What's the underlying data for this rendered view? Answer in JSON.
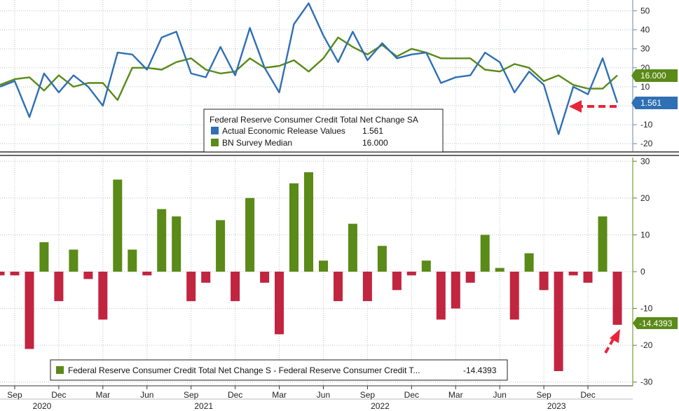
{
  "chart_data": [
    {
      "type": "line",
      "title": "Federal Reserve Consumer Credit Total Net Change SA",
      "ylim": [
        -24,
        55
      ],
      "yticks": [
        -20,
        -10,
        0,
        10,
        20,
        30,
        40,
        50
      ],
      "ytick_labels": [
        "-20",
        "-10",
        "0",
        "10",
        "20",
        "30",
        "40",
        "50"
      ],
      "series": [
        {
          "name": "Actual Economic Release Values",
          "legend_value": "1.561",
          "color": "#2f6fb3",
          "values": [
            10,
            13,
            -6,
            17,
            7,
            16,
            10,
            0,
            28,
            27,
            19,
            36,
            39,
            17,
            15,
            31,
            16,
            41,
            20,
            7,
            43,
            54,
            37,
            23,
            39,
            24,
            33,
            25,
            27,
            28,
            12,
            15,
            16,
            28,
            23,
            7,
            18,
            11,
            -15,
            10,
            6,
            25,
            1.561
          ]
        },
        {
          "name": "BN Survey Median",
          "legend_value": "16.000",
          "color": "#5a8a17",
          "values": [
            11,
            14,
            15,
            8,
            16,
            10,
            12,
            12,
            3,
            20,
            20,
            19,
            23,
            25,
            19,
            17,
            18,
            25,
            20,
            21,
            24,
            18,
            25,
            36,
            31,
            27,
            32,
            26,
            30,
            28,
            25,
            25,
            25,
            19,
            18,
            22,
            20,
            13,
            16,
            11,
            9,
            9,
            16
          ]
        }
      ],
      "last_value_badges": [
        {
          "series": "BN Survey Median",
          "label": "16.000",
          "color": "#5a8a17"
        },
        {
          "series": "Actual Economic Release Values",
          "label": "1.561",
          "color": "#2f6fb3"
        }
      ]
    },
    {
      "type": "bar",
      "title": "Federal Reserve Consumer Credit Total Net Change S - Federal Reserve Consumer Credit T...",
      "ylim": [
        -31,
        31
      ],
      "yticks": [
        -30,
        -20,
        -10,
        0,
        10,
        20,
        30
      ],
      "ytick_labels": [
        "-30",
        "-20",
        "-10",
        "0",
        "10",
        "20",
        "30"
      ],
      "positive_color": "#5a8a17",
      "negative_color": "#c1253f",
      "series": [
        {
          "name": "Federal Reserve Consumer Credit Total Net Change S - Federal Reserve Consumer Credit T...",
          "legend_value": "-14.4393",
          "values": [
            -1,
            -1,
            -21,
            8,
            -8,
            6,
            -2,
            -13,
            25,
            6,
            -1,
            17,
            15,
            -8,
            -3,
            14,
            -8,
            20,
            -3,
            -17,
            24,
            27,
            3,
            -8,
            13,
            -8,
            7,
            -5,
            -1,
            3,
            -13,
            -10,
            -3,
            10,
            1,
            -13,
            5,
            -5,
            -27,
            -1,
            -3,
            15,
            -14.4393
          ]
        }
      ],
      "last_value_badge": {
        "label": "-14.4393",
        "color": "#5a8a17"
      }
    }
  ],
  "x_axis": {
    "month_labels": [
      "Sep",
      "Dec",
      "Mar",
      "Jun",
      "Sep",
      "Dec",
      "Mar",
      "Jun",
      "Sep",
      "Dec",
      "Mar",
      "Jun",
      "Sep",
      "Dec"
    ],
    "month_label_indices": [
      1,
      4,
      7,
      10,
      13,
      16,
      19,
      22,
      25,
      28,
      31,
      34,
      37,
      40
    ],
    "year_labels": [
      "2020",
      "2021",
      "2022",
      "2023"
    ],
    "year_label_indices": [
      0,
      11,
      23,
      35
    ]
  }
}
